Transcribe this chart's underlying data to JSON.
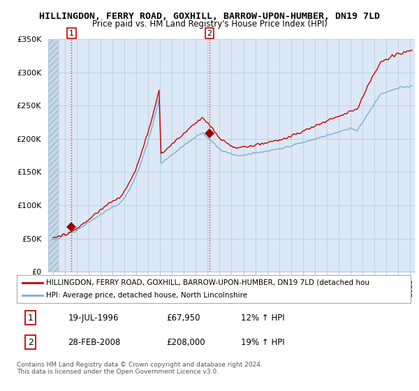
{
  "title": "HILLINGDON, FERRY ROAD, GOXHILL, BARROW-UPON-HUMBER, DN19 7LD",
  "subtitle": "Price paid vs. HM Land Registry's House Price Index (HPI)",
  "ylim": [
    0,
    350000
  ],
  "yticks": [
    0,
    50000,
    100000,
    150000,
    200000,
    250000,
    300000,
    350000
  ],
  "ytick_labels": [
    "£0",
    "£50K",
    "£100K",
    "£150K",
    "£200K",
    "£250K",
    "£300K",
    "£350K"
  ],
  "xlim_left": 1994.6,
  "xlim_right": 2025.4,
  "hatch_end_year": 1995.5,
  "sale1_year": 1996.55,
  "sale1_price": 67950,
  "sale2_year": 2008.16,
  "sale2_price": 208000,
  "line_color_red": "#cc0000",
  "line_color_blue": "#7bafd4",
  "marker_color_red": "#990000",
  "bg_fill_color": "#dce8f5",
  "bg_color": "#ffffff",
  "grid_color": "#b0c8e0",
  "hatch_fill_color": "#c8d8e8",
  "legend_line1": "HILLINGDON, FERRY ROAD, GOXHILL, BARROW-UPON-HUMBER, DN19 7LD (detached hou",
  "legend_line2": "HPI: Average price, detached house, North Lincolnshire",
  "table_row1": [
    "1",
    "19-JUL-1996",
    "£67,950",
    "12% ↑ HPI"
  ],
  "table_row2": [
    "2",
    "28-FEB-2008",
    "£208,000",
    "19% ↑ HPI"
  ],
  "footer": "Contains HM Land Registry data © Crown copyright and database right 2024.\nThis data is licensed under the Open Government Licence v3.0."
}
